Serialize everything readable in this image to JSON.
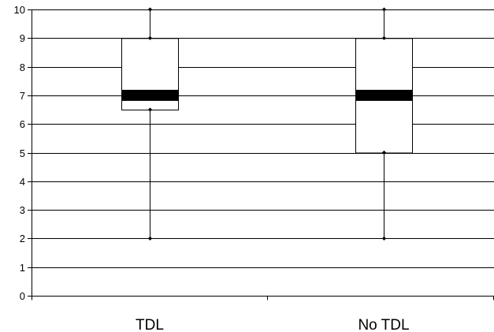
{
  "chart_data": {
    "type": "boxplot",
    "categories": [
      "TDL",
      "No TDL"
    ],
    "boxes": [
      {
        "category": "TDL",
        "min": 2,
        "q1": 6.5,
        "median": 7,
        "q3": 9,
        "max": 10,
        "whisker_high": 9
      },
      {
        "category": "No TDL",
        "min": 2,
        "q1": 5,
        "median": 7,
        "q3": 9,
        "max": 10,
        "whisker_low": 5,
        "whisker_high": 9
      }
    ],
    "ylim": [
      0,
      10
    ],
    "yticks": [
      0,
      1,
      2,
      3,
      4,
      5,
      6,
      7,
      8,
      9,
      10
    ],
    "grid": true,
    "title": "",
    "xlabel": "",
    "ylabel": ""
  }
}
